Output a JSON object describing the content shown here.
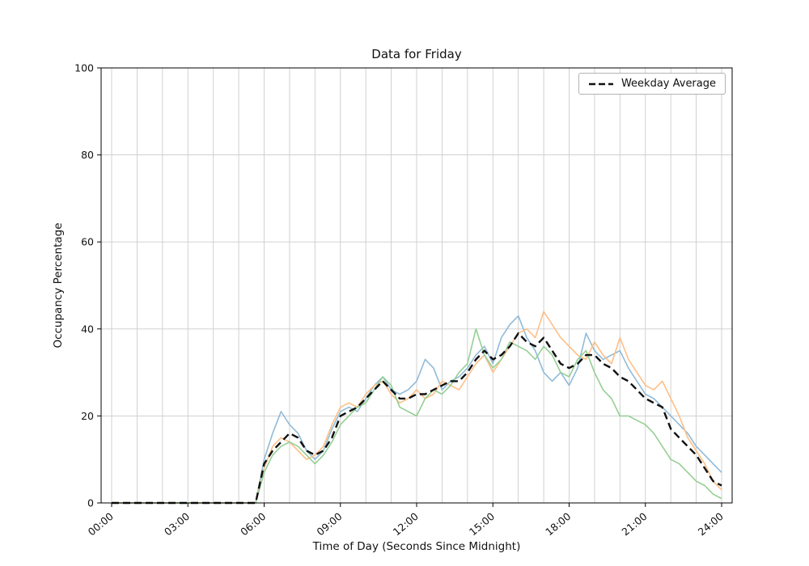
{
  "figure": {
    "background": "#ffffff"
  },
  "chart_data": {
    "type": "line",
    "title": "Data for Friday",
    "xlabel": "Time of Day (Seconds Since Midnight)",
    "ylabel": "Occupancy Percentage",
    "ylim": [
      0,
      100
    ],
    "x_hours_range": [
      0,
      24
    ],
    "x_ticks": [
      "00:00",
      "03:00",
      "06:00",
      "09:00",
      "12:00",
      "15:00",
      "18:00",
      "21:00",
      "24:00"
    ],
    "x_tick_hours": [
      0,
      3,
      6,
      9,
      12,
      15,
      18,
      21,
      24
    ],
    "y_ticks": [
      0,
      20,
      40,
      60,
      80,
      100
    ],
    "grid": true,
    "grid_minor_x_hours": 1,
    "grid_color": "#cccccc",
    "legend_position": "upper right",
    "legend_entries": [
      "Weekday Average"
    ],
    "series": [
      {
        "name": "friday-sample-blue",
        "color": "#8fbbd9",
        "dashed": false,
        "width": 1.6,
        "values": [
          0,
          0,
          0,
          0,
          0,
          0,
          0,
          0,
          0,
          0,
          0,
          0,
          0,
          0,
          0,
          0,
          0,
          0,
          10,
          16,
          21,
          18,
          16,
          12,
          10,
          12,
          17,
          21,
          22,
          21,
          24,
          27,
          29,
          26,
          25,
          26,
          28,
          33,
          31,
          26,
          28,
          29,
          31,
          34,
          36,
          32,
          38,
          41,
          43,
          38,
          35,
          30,
          28,
          30,
          27,
          31,
          39,
          35,
          33,
          34,
          35,
          31,
          28,
          25,
          24,
          22,
          20,
          18,
          16,
          13,
          11,
          9,
          7
        ]
      },
      {
        "name": "friday-sample-orange",
        "color": "#ffbf86",
        "dashed": false,
        "width": 1.6,
        "values": [
          0,
          0,
          0,
          0,
          0,
          0,
          0,
          0,
          0,
          0,
          0,
          0,
          0,
          0,
          0,
          0,
          0,
          0,
          8,
          13,
          15,
          14,
          12,
          10,
          11,
          13,
          18,
          22,
          23,
          22,
          25,
          27,
          28,
          25,
          23,
          24,
          26,
          24,
          25,
          28,
          27,
          26,
          29,
          32,
          34,
          30,
          33,
          36,
          39,
          40,
          38,
          44,
          41,
          38,
          36,
          34,
          33,
          37,
          34,
          32,
          38,
          33,
          30,
          27,
          26,
          28,
          24,
          20,
          15,
          12,
          9,
          5,
          3
        ]
      },
      {
        "name": "friday-sample-green",
        "color": "#95cf95",
        "dashed": false,
        "width": 1.6,
        "values": [
          0,
          0,
          0,
          0,
          0,
          0,
          0,
          0,
          0,
          0,
          0,
          0,
          0,
          0,
          0,
          0,
          0,
          0,
          7,
          11,
          13,
          14,
          13,
          11,
          9,
          11,
          14,
          18,
          20,
          22,
          23,
          26,
          29,
          27,
          22,
          21,
          20,
          24,
          26,
          25,
          27,
          30,
          32,
          40,
          34,
          31,
          33,
          37,
          36,
          35,
          33,
          36,
          34,
          30,
          29,
          33,
          35,
          30,
          26,
          24,
          20,
          20,
          19,
          18,
          16,
          13,
          10,
          9,
          7,
          5,
          4,
          2,
          1
        ]
      },
      {
        "name": "weekday-average",
        "legend_label": "Weekday Average",
        "color": "#111111",
        "dashed": true,
        "width": 2.4,
        "values": [
          0,
          0,
          0,
          0,
          0,
          0,
          0,
          0,
          0,
          0,
          0,
          0,
          0,
          0,
          0,
          0,
          0,
          0,
          9,
          12,
          14,
          16,
          15,
          12,
          11,
          12,
          15,
          20,
          21,
          22,
          24,
          26,
          28,
          26,
          24,
          24,
          25,
          25,
          26,
          27,
          28,
          28,
          30,
          33,
          35,
          33,
          34,
          36,
          39,
          37,
          36,
          38,
          35,
          32,
          31,
          32,
          34,
          34,
          32,
          31,
          29,
          28,
          26,
          24,
          23,
          22,
          17,
          15,
          13,
          11,
          8,
          5,
          4
        ]
      }
    ]
  }
}
